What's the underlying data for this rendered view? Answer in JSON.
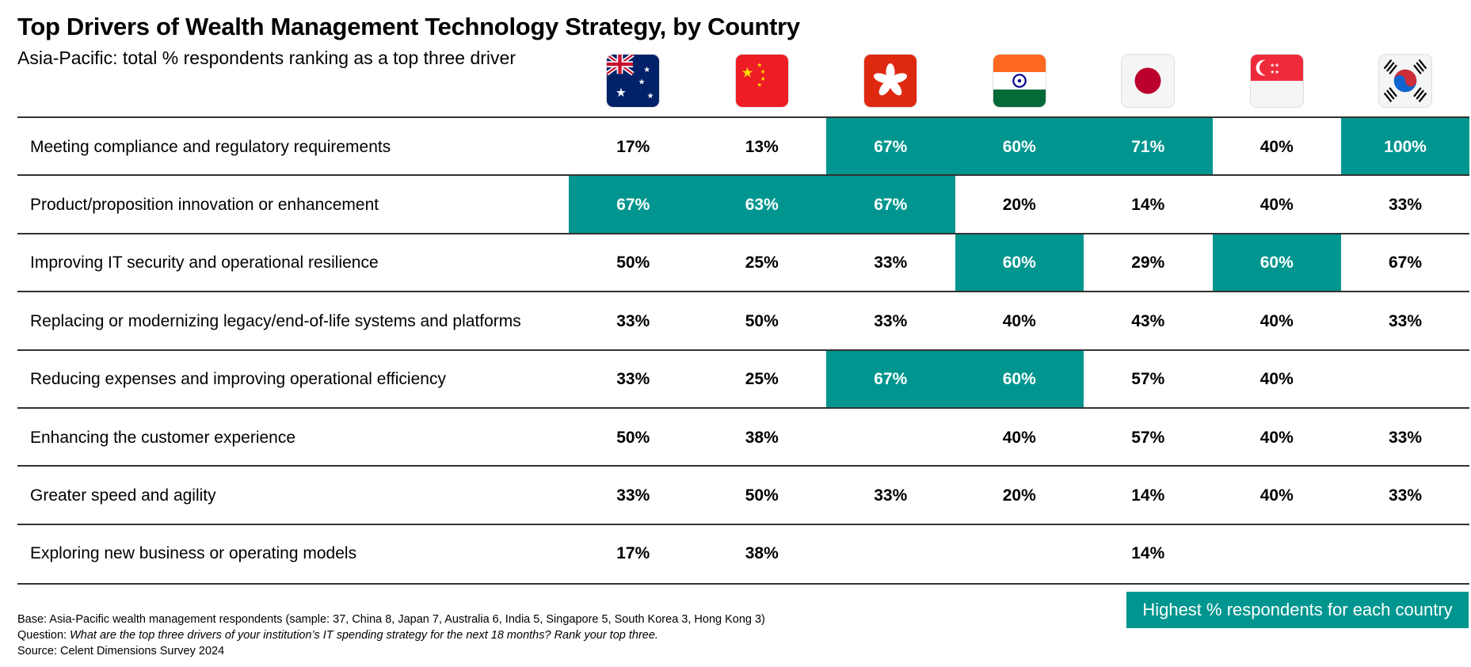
{
  "chart_data": {
    "type": "table",
    "title": "Top Drivers of Wealth Management Technology Strategy, by Country",
    "subtitle": "Asia-Pacific: total % respondents  ranking as a top three driver",
    "columns": [
      {
        "country": "Australia",
        "icon": "australia-flag-icon"
      },
      {
        "country": "China",
        "icon": "china-flag-icon"
      },
      {
        "country": "Hong Kong",
        "icon": "hong-kong-flag-icon"
      },
      {
        "country": "India",
        "icon": "india-flag-icon"
      },
      {
        "country": "Japan",
        "icon": "japan-flag-icon"
      },
      {
        "country": "Singapore",
        "icon": "singapore-flag-icon"
      },
      {
        "country": "South Korea",
        "icon": "south-korea-flag-icon"
      }
    ],
    "rows": [
      {
        "label": "Meeting compliance and regulatory requirements",
        "values": [
          "17%",
          "13%",
          "67%",
          "60%",
          "71%",
          "40%",
          "100%"
        ],
        "highlight": [
          false,
          false,
          true,
          true,
          true,
          false,
          true
        ]
      },
      {
        "label": "Product/proposition innovation or enhancement",
        "values": [
          "67%",
          "63%",
          "67%",
          "20%",
          "14%",
          "40%",
          "33%"
        ],
        "highlight": [
          true,
          true,
          true,
          false,
          false,
          false,
          false
        ]
      },
      {
        "label": "Improving IT security and operational resilience",
        "values": [
          "50%",
          "25%",
          "33%",
          "60%",
          "29%",
          "60%",
          "67%"
        ],
        "highlight": [
          false,
          false,
          false,
          true,
          false,
          true,
          false
        ]
      },
      {
        "label": "Replacing or modernizing legacy/end-of-life systems and platforms",
        "values": [
          "33%",
          "50%",
          "33%",
          "40%",
          "43%",
          "40%",
          "33%"
        ],
        "highlight": [
          false,
          false,
          false,
          false,
          false,
          false,
          false
        ]
      },
      {
        "label": "Reducing expenses and improving operational efficiency",
        "values": [
          "33%",
          "25%",
          "67%",
          "60%",
          "57%",
          "40%",
          ""
        ],
        "highlight": [
          false,
          false,
          true,
          true,
          false,
          false,
          false
        ]
      },
      {
        "label": "Enhancing the customer experience",
        "values": [
          "50%",
          "38%",
          "",
          "40%",
          "57%",
          "40%",
          "33%"
        ],
        "highlight": [
          false,
          false,
          false,
          false,
          false,
          false,
          false
        ]
      },
      {
        "label": "Greater speed and agility",
        "values": [
          "33%",
          "50%",
          "33%",
          "20%",
          "14%",
          "40%",
          "33%"
        ],
        "highlight": [
          false,
          false,
          false,
          false,
          false,
          false,
          false
        ]
      },
      {
        "label": "Exploring new business or operating models",
        "values": [
          "17%",
          "38%",
          "",
          "",
          "14%",
          "",
          ""
        ],
        "highlight": [
          false,
          false,
          false,
          false,
          false,
          false,
          false
        ]
      }
    ],
    "highlight_color": "#00968f",
    "legend": "Highest % respondents for each country"
  },
  "footnotes": {
    "base": "Base: Asia-Pacific wealth management respondents (sample: 37, China 8, Japan 7, Australia 6, India 5, Singapore 5, South Korea 3, Hong Kong 3)",
    "question_label": "Question: ",
    "question": "What are the top three drivers of your institution’s IT spending strategy for the next 18 months? Rank your top three.",
    "source": "Source: Celent Dimensions Survey 2024"
  }
}
